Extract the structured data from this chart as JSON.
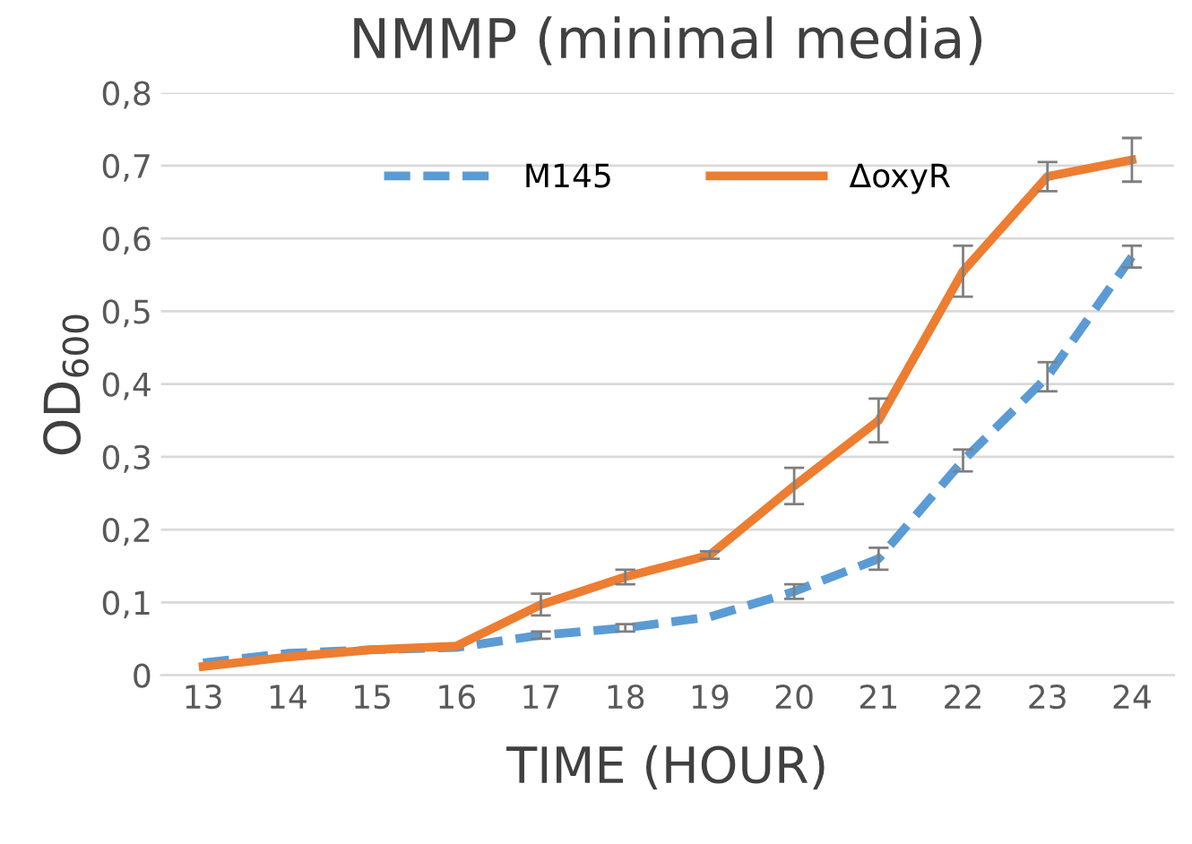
{
  "chart_data": {
    "type": "line",
    "title": "NMMP (minimal media)",
    "xlabel": "TIME (HOUR)",
    "ylabel": "OD$_{600}$",
    "categories": [
      "13",
      "14",
      "15",
      "16",
      "17",
      "18",
      "19",
      "20",
      "21",
      "22",
      "23",
      "24"
    ],
    "series": [
      {
        "name": "M145",
        "color": "#5b9bd5",
        "line_style": "dashed",
        "values": [
          0.017,
          0.03,
          0.035,
          0.038,
          0.055,
          0.065,
          0.08,
          0.115,
          0.16,
          0.295,
          0.41,
          0.575
        ],
        "errors": [
          null,
          null,
          null,
          null,
          0.005,
          0.005,
          null,
          0.01,
          0.015,
          0.015,
          0.02,
          0.015
        ]
      },
      {
        "name": "ΔoxyR",
        "color": "#ed7d31",
        "line_style": "solid",
        "values": [
          0.012,
          0.025,
          0.035,
          0.04,
          0.097,
          0.135,
          0.165,
          0.26,
          0.35,
          0.555,
          0.685,
          0.708
        ],
        "errors": [
          null,
          null,
          null,
          null,
          0.015,
          0.01,
          0.005,
          0.025,
          0.03,
          0.035,
          0.02,
          0.03
        ]
      }
    ],
    "ylim": [
      0,
      0.8
    ],
    "yticks": [
      0,
      {
        "value": 0.1,
        "label": "0,1"
      },
      {
        "value": 0.2,
        "label": "0,2"
      },
      {
        "value": 0.3,
        "label": "0,3"
      },
      {
        "value": 0.4,
        "label": "0,4"
      },
      {
        "value": 0.5,
        "label": "0,5"
      },
      {
        "value": 0.6,
        "label": "0,6"
      },
      {
        "value": 0.7,
        "label": "0,7"
      },
      {
        "value": 0.8,
        "label": "0,8"
      }
    ],
    "grid": "y",
    "legend": "top",
    "marker": "none"
  }
}
